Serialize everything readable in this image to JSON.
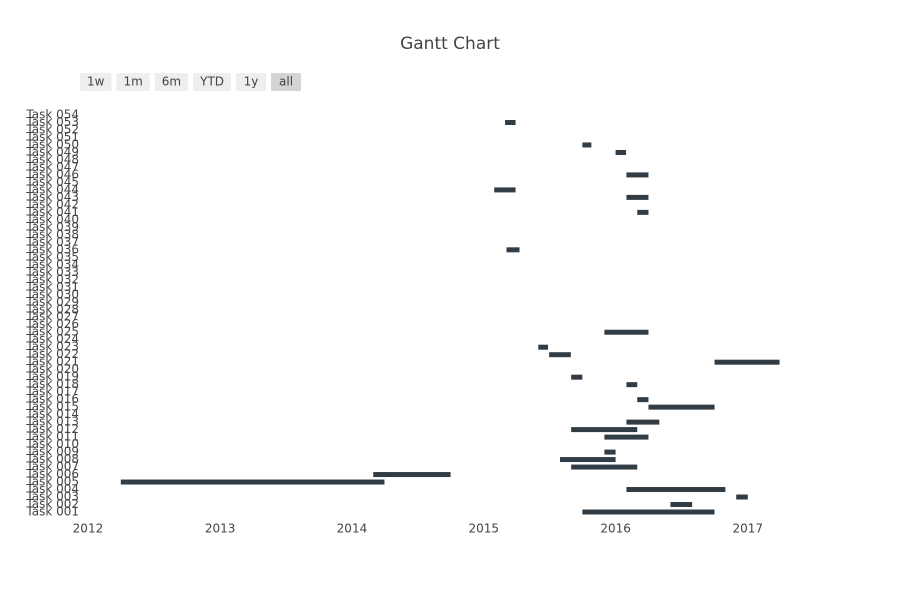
{
  "chart_data": {
    "type": "gantt",
    "title": "Gantt Chart",
    "range_buttons": [
      "1w",
      "1m",
      "6m",
      "YTD",
      "1y",
      "all"
    ],
    "active_button": "all",
    "categories": [
      "Task 001",
      "Task 002",
      "Task 003",
      "Task 004",
      "Task 005",
      "Task 006",
      "Task 007",
      "Task 008",
      "Task 009",
      "Task 010",
      "Task 011",
      "Task 012",
      "Task 013",
      "Task 014",
      "Task 015",
      "Task 016",
      "Task 017",
      "Task 018",
      "Task 019",
      "Task 020",
      "Task 021",
      "Task 022",
      "Task 023",
      "Task 024",
      "Task 025",
      "Task 026",
      "Task 027",
      "Task 028",
      "Task 029",
      "Task 030",
      "Task 031",
      "Task 032",
      "Task 033",
      "Task 034",
      "Task 035",
      "Task 036",
      "Task 037",
      "Task 038",
      "Task 039",
      "Task 040",
      "Task 041",
      "Task 042",
      "Task 043",
      "Task 044",
      "Task 045",
      "Task 046",
      "Task 047",
      "Task 048",
      "Task 049",
      "Task 050",
      "Task 051",
      "Task 052",
      "Task 053",
      "Task 054"
    ],
    "start": [
      "2015-10-01",
      "2016-06-01",
      "2016-11-30",
      "2016-01-31",
      "2012-04-01",
      "2014-03-01",
      "2015-08-31",
      "2015-07-31",
      "2015-12-01",
      null,
      "2015-12-01",
      "2015-08-31",
      "2016-01-31",
      null,
      "2016-04-01",
      "2016-03-01",
      null,
      "2016-01-31",
      "2015-08-31",
      null,
      "2016-10-01",
      "2015-07-01",
      "2015-06-01",
      null,
      "2015-12-01",
      null,
      null,
      null,
      null,
      null,
      null,
      null,
      null,
      null,
      null,
      "2015-03-05",
      null,
      null,
      null,
      null,
      "2016-03-01",
      null,
      "2016-01-31",
      "2015-01-30",
      null,
      "2016-01-31",
      null,
      null,
      "2016-01-01",
      "2015-10-01",
      null,
      null,
      "2015-03-01",
      null
    ],
    "end": [
      "2016-10-01",
      "2016-07-31",
      "2017-01-01",
      "2016-10-31",
      "2014-04-01",
      "2014-10-01",
      "2016-03-01",
      "2016-01-01",
      "2016-01-01",
      null,
      "2016-04-01",
      "2016-03-01",
      "2016-05-01",
      null,
      "2016-10-01",
      "2016-04-01",
      null,
      "2016-03-01",
      "2015-10-01",
      null,
      "2017-03-30",
      "2015-08-30",
      "2015-06-28",
      null,
      "2016-04-01",
      null,
      null,
      null,
      null,
      null,
      null,
      null,
      null,
      null,
      null,
      "2015-04-10",
      null,
      null,
      null,
      null,
      "2016-04-01",
      null,
      "2016-04-01",
      "2015-03-30",
      null,
      "2016-04-01",
      null,
      null,
      "2016-01-30",
      "2015-10-26",
      null,
      null,
      "2015-03-30",
      null
    ],
    "color": "#323c44",
    "xlim": [
      "2011-12-10",
      "2017-07-20"
    ],
    "xticks": [
      {
        "value": "2012-01-01",
        "label": "2012"
      },
      {
        "value": "2013-01-01",
        "label": "2013"
      },
      {
        "value": "2014-01-01",
        "label": "2014"
      },
      {
        "value": "2015-01-01",
        "label": "2015"
      },
      {
        "value": "2016-01-01",
        "label": "2016"
      },
      {
        "value": "2017-01-01",
        "label": "2017"
      }
    ]
  }
}
